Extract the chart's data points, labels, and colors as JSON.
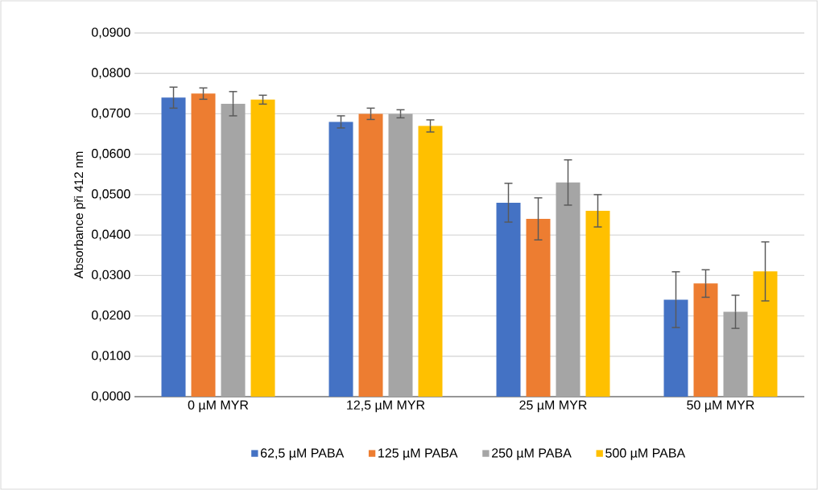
{
  "chart_data": {
    "type": "bar",
    "ylabel": "Absorbance při 412 nm",
    "categories": [
      "0 µM MYR",
      "12,5 µM MYR",
      "25 µM MYR",
      "50 µM MYR"
    ],
    "series": [
      {
        "name": "62,5 µM PABA",
        "color": "#4472c4",
        "values": [
          0.074,
          0.068,
          0.048,
          0.024
        ],
        "errors": [
          0.0026,
          0.0015,
          0.0048,
          0.0069
        ]
      },
      {
        "name": "125 µM PABA",
        "color": "#ed7d31",
        "values": [
          0.075,
          0.07,
          0.044,
          0.028
        ],
        "errors": [
          0.0014,
          0.0014,
          0.0052,
          0.0034
        ]
      },
      {
        "name": "250 µM PABA",
        "color": "#a5a5a5",
        "values": [
          0.0725,
          0.07,
          0.053,
          0.021
        ],
        "errors": [
          0.003,
          0.001,
          0.0056,
          0.0041
        ]
      },
      {
        "name": "500 µM PABA",
        "color": "#ffc000",
        "values": [
          0.0735,
          0.067,
          0.046,
          0.031
        ],
        "errors": [
          0.0011,
          0.0015,
          0.004,
          0.0073
        ]
      }
    ],
    "ylim": [
      0,
      0.09
    ],
    "yticks": [
      {
        "value": 0,
        "label": "0,0000"
      },
      {
        "value": 0.01,
        "label": "0,0100"
      },
      {
        "value": 0.02,
        "label": "0,0200"
      },
      {
        "value": 0.03,
        "label": "0,0300"
      },
      {
        "value": 0.04,
        "label": "0,0400"
      },
      {
        "value": 0.05,
        "label": "0,0500"
      },
      {
        "value": 0.06,
        "label": "0,0600"
      },
      {
        "value": 0.07,
        "label": "0,0700"
      },
      {
        "value": 0.08,
        "label": "0,0800"
      },
      {
        "value": 0.09,
        "label": "0,0900"
      }
    ],
    "grid": "y",
    "legend": "bottom"
  }
}
